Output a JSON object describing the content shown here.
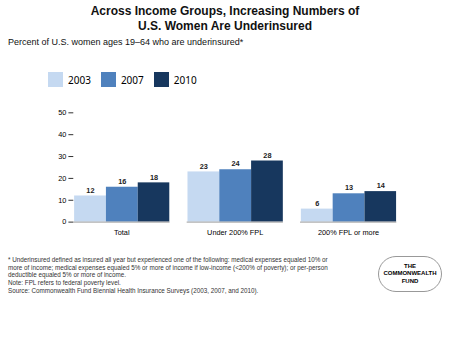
{
  "chart_data": {
    "type": "bar",
    "title": "Across Income Groups, Increasing Numbers of\nU.S. Women Are Underinsured",
    "subtitle": "Percent of U.S. women ages 19–64 who are underinsured*",
    "categories": [
      "Total",
      "Under 200% FPL",
      "200% FPL or more"
    ],
    "series": [
      {
        "name": "2003",
        "color": "#c5d9f1",
        "values": [
          12,
          23,
          6
        ]
      },
      {
        "name": "2007",
        "color": "#4f81bd",
        "values": [
          16,
          24,
          13
        ]
      },
      {
        "name": "2010",
        "color": "#17375e",
        "values": [
          18,
          28,
          14
        ]
      }
    ],
    "ylim": [
      0,
      50
    ],
    "yticks": [
      0,
      10,
      20,
      30,
      40,
      50
    ],
    "grid": false,
    "legend": "top",
    "data_labels": true,
    "annotations": [
      "* Underinsured defined as insured all year but experienced one of the following: medical expenses equaled 10% or",
      "more of income; medical expenses equaled 5% or more of income if low-income (<200% of poverty); or per-person",
      "deductible equaled 5% or more of income.",
      "Note: FPL refers to federal poverty level.",
      "Source: Commonwealth Fund Biennial Health Insurance Surveys (2003, 2007, and 2010)."
    ],
    "logo_text": [
      "THE",
      "COMMONWEALTH",
      "FUND"
    ]
  }
}
